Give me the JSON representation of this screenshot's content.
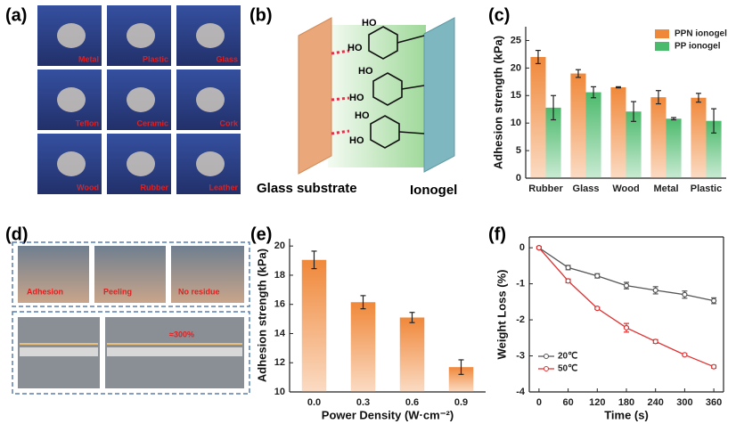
{
  "panel_labels": [
    "(a)",
    "(b)",
    "(c)",
    "(d)",
    "(e)",
    "(f)"
  ],
  "photos_a": [
    "Metal",
    "Plastic",
    "Glass",
    "Teflon",
    "Ceramic",
    "Cork",
    "Wood",
    "Rubber",
    "Leather"
  ],
  "diagram_b": {
    "left": "Glass substrate",
    "right": "Ionogel",
    "hydroxyl": [
      "HO",
      "HO",
      "HO",
      "HO",
      "HO",
      "HO"
    ]
  },
  "photos_d": [
    "Adhesion",
    "Peeling",
    "No residue",
    "≈300%"
  ],
  "chart_data": [
    {
      "type": "bar",
      "ylabel": "Adhesion strength (kPa)",
      "categories": [
        "Rubber",
        "Glass",
        "Wood",
        "Metal",
        "Plastic"
      ],
      "series": [
        {
          "name": "PPN ionogel",
          "color": "#f0883a",
          "values": [
            22,
            19,
            16.5,
            14.7,
            14.6
          ],
          "errors": [
            1.2,
            0.7,
            0.1,
            1.2,
            0.8
          ]
        },
        {
          "name": "PP ionogel",
          "color": "#4cba6c",
          "values": [
            12.8,
            15.6,
            12.1,
            10.8,
            10.4
          ],
          "errors": [
            2.2,
            1.0,
            1.8,
            0.2,
            2.2
          ]
        }
      ],
      "ylim": [
        0,
        27.5
      ],
      "yticks": [
        0,
        5,
        10,
        15,
        20,
        25
      ],
      "legend": "upper right"
    },
    {
      "type": "bar",
      "ylabel": "Adhesion strength (kPa)",
      "xlabel": "Power Density (W·cm⁻²)",
      "categories": [
        "0.0",
        "0.3",
        "0.6",
        "0.9"
      ],
      "series": [
        {
          "color": "#f0883a",
          "values": [
            19.05,
            16.15,
            15.1,
            11.7
          ],
          "errors": [
            0.6,
            0.45,
            0.35,
            0.5
          ]
        }
      ],
      "ylim": [
        10,
        20.5
      ],
      "yticks": [
        10,
        12,
        14,
        16,
        18,
        20
      ]
    },
    {
      "type": "line",
      "ylabel": "Weight Loss (%)",
      "xlabel": "Time (s)",
      "x": [
        0,
        60,
        120,
        180,
        240,
        300,
        360
      ],
      "series": [
        {
          "name": "20℃",
          "color": "#555555",
          "values": [
            0,
            -0.55,
            -0.78,
            -1.05,
            -1.18,
            -1.3,
            -1.47
          ],
          "errors": [
            0.03,
            0.06,
            0.06,
            0.09,
            0.1,
            0.1,
            0.08
          ]
        },
        {
          "name": "50℃",
          "color": "#e03030",
          "values": [
            0,
            -0.92,
            -1.68,
            -2.22,
            -2.6,
            -2.97,
            -3.3
          ],
          "errors": [
            0.03,
            0.05,
            0.03,
            0.12,
            0.05,
            0.03,
            0.04
          ]
        }
      ],
      "xlim": [
        -20,
        380
      ],
      "xticks": [
        0,
        60,
        120,
        180,
        240,
        300,
        360
      ],
      "ylim": [
        -4,
        0.3
      ],
      "yticks": [
        0,
        -1,
        -2,
        -3,
        -4
      ],
      "frame": true,
      "legend": "lower left"
    }
  ]
}
